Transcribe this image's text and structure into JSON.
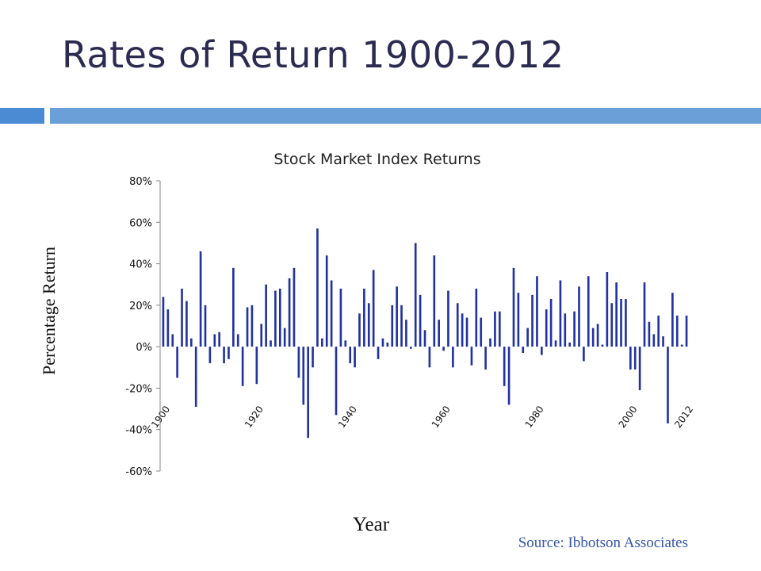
{
  "slide": {
    "title": "Rates of Return 1900-2012",
    "source": "Source: Ibbotson Associates",
    "accent_colors": [
      "#4a8bd4",
      "#6a9fd8"
    ]
  },
  "chart_data": {
    "type": "bar",
    "title": "Stock Market Index Returns",
    "xlabel": "Year",
    "ylabel": "Percentage Return",
    "ylim": [
      -60,
      80
    ],
    "y_ticks": [
      80,
      60,
      40,
      20,
      0,
      -20,
      -40,
      -60
    ],
    "y_tick_labels": [
      "80%",
      "60%",
      "40%",
      "20%",
      "0%",
      "-20%",
      "-40%",
      "-60%"
    ],
    "year_labels": [
      "1900",
      "1920",
      "1940",
      "1960",
      "1980",
      "2000",
      "2012"
    ],
    "year_label_values": [
      1900,
      1920,
      1940,
      1960,
      1980,
      2000,
      2012
    ],
    "bar_color": "#2233a0",
    "series": [
      {
        "x": [
          1900,
          1901,
          1902,
          1903,
          1904,
          1905,
          1906,
          1907,
          1908,
          1909,
          1910,
          1911,
          1912,
          1913,
          1914,
          1915,
          1916,
          1917,
          1918,
          1919,
          1920,
          1921,
          1922,
          1923,
          1924,
          1925,
          1926,
          1927,
          1928,
          1929,
          1930,
          1931,
          1932,
          1933,
          1934,
          1935,
          1936,
          1937,
          1938,
          1939,
          1940,
          1941,
          1942,
          1943,
          1944,
          1945,
          1946,
          1947,
          1948,
          1949,
          1950,
          1951,
          1952,
          1953,
          1954,
          1955,
          1956,
          1957,
          1958,
          1959,
          1960,
          1961,
          1962,
          1963,
          1964,
          1965,
          1966,
          1967,
          1968,
          1969,
          1970,
          1971,
          1972,
          1973,
          1974,
          1975,
          1976,
          1977,
          1978,
          1979,
          1980,
          1981,
          1982,
          1983,
          1984,
          1985,
          1986,
          1987,
          1988,
          1989,
          1990,
          1991,
          1992,
          1993,
          1994,
          1995,
          1996,
          1997,
          1998,
          1999,
          2000,
          2001,
          2002,
          2003,
          2004,
          2005,
          2006,
          2007,
          2008,
          2009,
          2010,
          2011,
          2012
        ],
        "values": [
          24,
          18,
          6,
          -15,
          28,
          22,
          4,
          -29,
          46,
          20,
          -8,
          6,
          7,
          -8,
          -6,
          38,
          6,
          -19,
          19,
          20,
          -18,
          11,
          30,
          3,
          27,
          28,
          9,
          33,
          38,
          -15,
          -28,
          -44,
          -10,
          57,
          4,
          44,
          32,
          -33,
          28,
          3,
          -8,
          -10,
          16,
          28,
          21,
          37,
          -6,
          4,
          2,
          20,
          29,
          20,
          13,
          -1,
          50,
          25,
          8,
          -10,
          44,
          13,
          -2,
          27,
          -10,
          21,
          16,
          14,
          -9,
          28,
          14,
          -11,
          4,
          17,
          17,
          -19,
          -28,
          38,
          26,
          -3,
          9,
          25,
          34,
          -4,
          18,
          23,
          3,
          32,
          16,
          2,
          17,
          29,
          -7,
          34,
          9,
          11,
          1,
          36,
          21,
          31,
          23,
          23,
          -11,
          -11,
          -21,
          31,
          12,
          6,
          15,
          5,
          -37,
          26,
          15,
          1,
          15
        ]
      }
    ]
  }
}
